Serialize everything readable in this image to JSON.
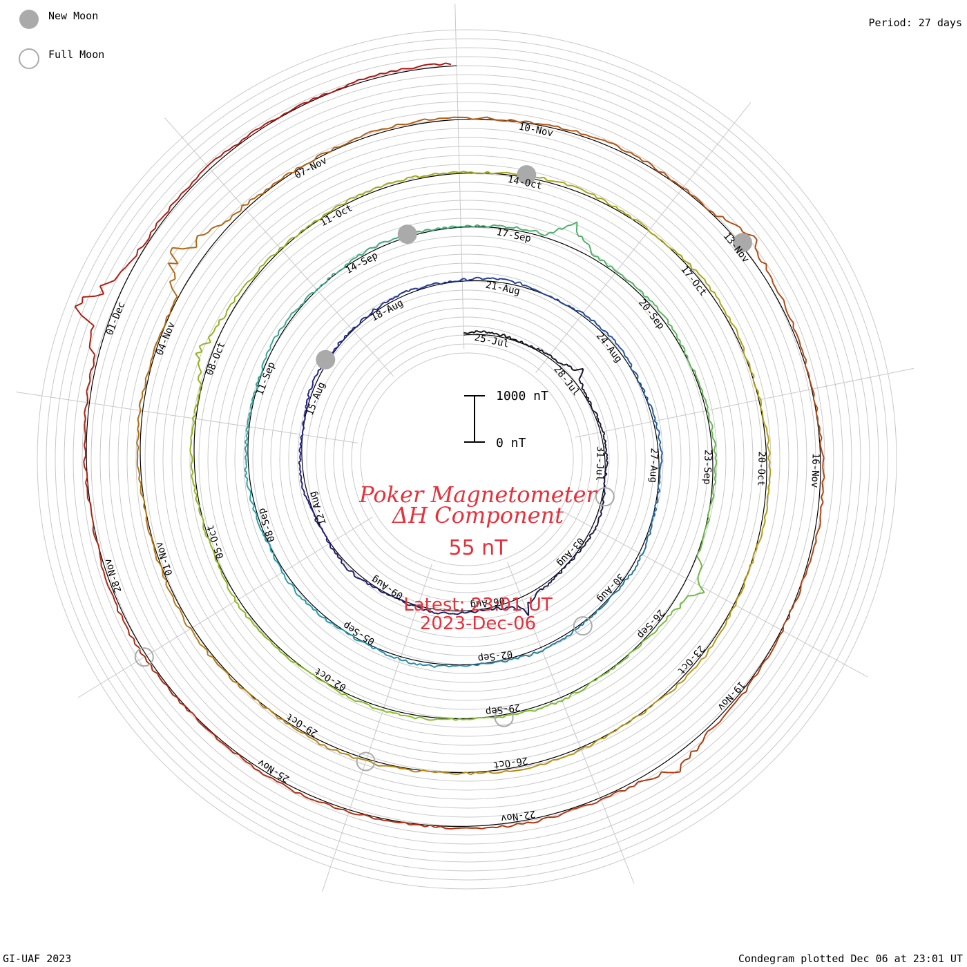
{
  "legend": {
    "new_moon_label": "New Moon",
    "full_moon_label": "Full Moon",
    "new_moon_color": "#aaaaaa",
    "full_moon_color": "#aaaaaa"
  },
  "period_label": "Period: 27 days",
  "credit": "GI-UAF 2023",
  "plotted_label": "Condegram plotted Dec 06 at 23:01 UT",
  "center": {
    "title_line1": "Poker Magnetometer",
    "title_line2": "ΔH Component",
    "current_value": "55 nT",
    "latest_line": "Latest: 23:01 UT",
    "latest_date": "2023-Dec-06",
    "text_color": "#e8303a"
  },
  "scale_bar": {
    "top_label": "1000 nT",
    "bottom_label": "0 nT"
  },
  "chart_data": {
    "type": "line",
    "projection": "polar spiral (condegram), 27-day period per ring",
    "period_days": 27,
    "value_unit": "nT",
    "scale_nT": [
      0,
      1000
    ],
    "start": "2023-07-24",
    "end": "2023-12-06",
    "grid": true,
    "rings": [
      {
        "start": "2023-07-24",
        "color": "#101010",
        "labels": [
          "25-Jul",
          "28-Jul",
          "31-Jul",
          "03-Aug",
          "06-Aug",
          "09-Aug",
          "12-Aug",
          "15-Aug",
          "18-Aug"
        ]
      },
      {
        "start": "2023-08-20",
        "color": "#1e1e8c",
        "labels": [
          "21-Aug",
          "24-Aug",
          "27-Aug",
          "30-Aug",
          "02-Sep",
          "05-Sep",
          "08-Sep",
          "11-Sep",
          "14-Sep"
        ]
      },
      {
        "start": "2023-09-16",
        "color": "#20a0b0",
        "labels": [
          "17-Sep",
          "20-Sep",
          "23-Sep",
          "26-Sep",
          "29-Sep",
          "02-Oct",
          "05-Oct",
          "08-Oct",
          "11-Oct"
        ]
      },
      {
        "start": "2023-10-13",
        "color": "#80c020",
        "labels": [
          "14-Oct",
          "17-Oct",
          "20-Oct",
          "23-Oct",
          "26-Oct",
          "29-Oct",
          "01-Nov",
          "04-Nov",
          "07-Nov"
        ]
      },
      {
        "start": "2023-11-09",
        "color": "#b89a10",
        "labels": [
          "10-Nov",
          "13-Nov",
          "16-Nov",
          "19-Nov",
          "22-Nov",
          "25-Nov",
          "28-Nov",
          "01-Dec"
        ]
      }
    ],
    "baseline_nT": 55,
    "deviations": [
      {
        "date": "2023-07-28",
        "value_nT": 200
      },
      {
        "date": "2023-08-05",
        "value_nT": 280
      },
      {
        "date": "2023-09-18",
        "value_nT": 420
      },
      {
        "date": "2023-09-25",
        "value_nT": 350
      },
      {
        "date": "2023-10-08",
        "value_nT": 330
      },
      {
        "date": "2023-11-05",
        "value_nT": 600
      },
      {
        "date": "2023-11-13",
        "value_nT": 260
      },
      {
        "date": "2023-11-20",
        "value_nT": 300
      },
      {
        "date": "2023-12-01",
        "value_nT": 700
      }
    ],
    "new_moons": [
      "2023-08-16",
      "2023-09-15",
      "2023-10-14",
      "2023-11-13"
    ],
    "full_moons": [
      "2023-08-01",
      "2023-08-31",
      "2023-09-29",
      "2023-10-28",
      "2023-11-27"
    ]
  }
}
